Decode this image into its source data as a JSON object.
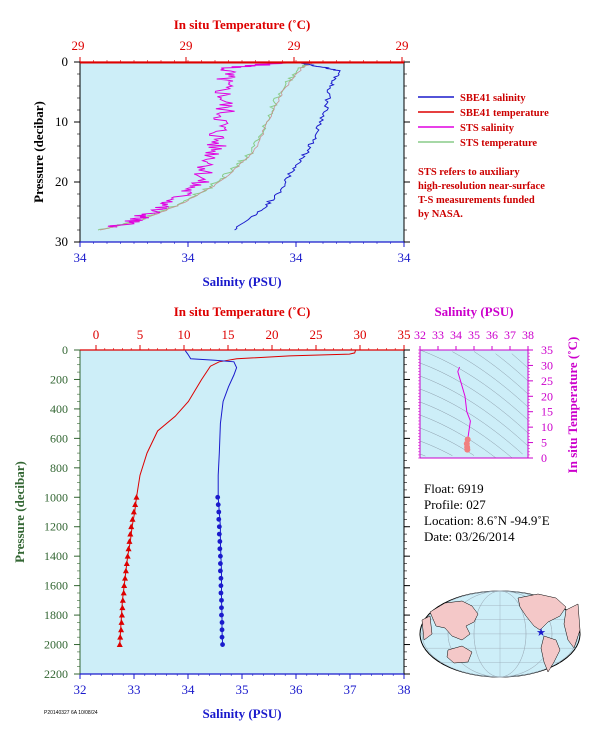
{
  "colors": {
    "plot_bg": "#cdeef8",
    "salinity": "#1a1acc",
    "temperature": "#dd0000",
    "sts_salinity": "#e000e0",
    "sts_temperature": "#88cc88",
    "pressure_axis": "#336633",
    "ts_axis": "#cc00cc",
    "land": "#f4c8c8"
  },
  "top_chart": {
    "top_axis_title": "In situ Temperature (˚C)",
    "top_ticks": [
      "29",
      "29",
      "29",
      "29"
    ],
    "bottom_axis_title": "Salinity (PSU)",
    "bottom_ticks": [
      "34",
      "34",
      "34",
      "34"
    ],
    "y_axis_title": "Pressure (decibar)",
    "y_ticks": [
      "0",
      "10",
      "20",
      "30"
    ],
    "legend": [
      "SBE41 salinity",
      "SBE41 temperature",
      "STS salinity",
      "STS temperature"
    ],
    "note_lines": [
      "STS refers to auxiliary",
      "high-resolution near-surface",
      "T-S measurements funded",
      "by NASA."
    ]
  },
  "main_chart": {
    "top_axis_title": "In situ Temperature (˚C)",
    "top_ticks": [
      "0",
      "5",
      "10",
      "15",
      "20",
      "25",
      "30",
      "35"
    ],
    "bottom_axis_title": "Salinity (PSU)",
    "bottom_ticks": [
      "32",
      "33",
      "34",
      "35",
      "36",
      "37",
      "38"
    ],
    "y_axis_title": "Pressure (decibar)",
    "y_ticks": [
      "0",
      "200",
      "400",
      "600",
      "800",
      "1000",
      "1200",
      "1400",
      "1600",
      "1800",
      "2000",
      "2200"
    ]
  },
  "ts_chart": {
    "top_axis_title": "Salinity (PSU)",
    "top_ticks": [
      "32",
      "33",
      "34",
      "35",
      "36",
      "37",
      "38"
    ],
    "right_axis_title": "In situ Temperature (˚C)",
    "right_ticks": [
      "0",
      "5",
      "10",
      "15",
      "20",
      "25",
      "30",
      "35"
    ]
  },
  "info": {
    "float": "Float:  6919",
    "profile": "Profile:  027",
    "location": "Location:  8.6˚N  -94.9˚E",
    "date": "Date:  03/26/2014"
  },
  "stamp": "P20140327 6A 10/08/24",
  "chart_data": [
    {
      "type": "line",
      "name": "near-surface profile",
      "y_range": [
        0,
        30
      ],
      "sbe41_salinity": [
        [
          0.0,
          0.1
        ],
        [
          0.5,
          0.8
        ],
        [
          0.9,
          1.5
        ],
        [
          0.7,
          4
        ],
        [
          0.6,
          8
        ],
        [
          0.4,
          12
        ],
        [
          0.2,
          15
        ],
        [
          -0.1,
          18
        ],
        [
          -0.4,
          22
        ],
        [
          -0.8,
          25
        ],
        [
          -1.3,
          28
        ]
      ],
      "sbe41_temperature": [
        [
          1.8,
          0.0
        ],
        [
          1.8,
          0.1
        ]
      ],
      "sts_salinity": [
        [
          0.9,
          0.1
        ],
        [
          -0.3,
          1
        ],
        [
          -0.4,
          4
        ],
        [
          -0.35,
          8
        ],
        [
          -0.5,
          12
        ],
        [
          -0.6,
          16
        ],
        [
          -0.9,
          20
        ],
        [
          -1.4,
          23
        ],
        [
          -2.0,
          25.5
        ],
        [
          -2.6,
          27.5
        ]
      ],
      "sts_temperature": [
        [
          1.4,
          0.2
        ],
        [
          1.2,
          1
        ],
        [
          0.8,
          5
        ],
        [
          0.5,
          10
        ],
        [
          0.2,
          15
        ],
        [
          -0.2,
          18
        ],
        [
          -0.7,
          21
        ],
        [
          -1.4,
          24
        ],
        [
          -2.2,
          26.5
        ],
        [
          -3.0,
          28
        ]
      ]
    },
    {
      "type": "line",
      "name": "full profile",
      "y_range": [
        0,
        2200
      ],
      "x_salinity_range": [
        32,
        38
      ],
      "x_temperature_range": [
        0,
        35
      ],
      "salinity": [
        [
          33.95,
          5
        ],
        [
          34.0,
          30
        ],
        [
          34.05,
          60
        ],
        [
          34.5,
          70
        ],
        [
          34.85,
          80
        ],
        [
          34.9,
          120
        ],
        [
          34.85,
          170
        ],
        [
          34.75,
          250
        ],
        [
          34.65,
          350
        ],
        [
          34.6,
          500
        ],
        [
          34.58,
          700
        ],
        [
          34.56,
          850
        ],
        [
          34.56,
          1000
        ],
        [
          34.58,
          1100
        ],
        [
          34.6,
          1200
        ],
        [
          34.6,
          1300
        ],
        [
          34.61,
          1400
        ],
        [
          34.62,
          1500
        ],
        [
          34.62,
          1600
        ],
        [
          34.62,
          1700
        ],
        [
          34.63,
          1800
        ],
        [
          34.63,
          1900
        ],
        [
          34.64,
          2000
        ]
      ],
      "temperature": [
        [
          29.5,
          0
        ],
        [
          29.4,
          20
        ],
        [
          28.8,
          28
        ],
        [
          22.0,
          40
        ],
        [
          16.0,
          60
        ],
        [
          14.0,
          80
        ],
        [
          13.0,
          110
        ],
        [
          12.0,
          200
        ],
        [
          10.5,
          350
        ],
        [
          9.0,
          450
        ],
        [
          7.0,
          550
        ],
        [
          5.8,
          700
        ],
        [
          5.0,
          850
        ],
        [
          4.6,
          1000
        ],
        [
          4.4,
          1100
        ],
        [
          4.1,
          1200
        ],
        [
          3.9,
          1300
        ],
        [
          3.6,
          1400
        ],
        [
          3.4,
          1500
        ],
        [
          3.2,
          1600
        ],
        [
          3.0,
          1700
        ],
        [
          2.9,
          1800
        ],
        [
          2.8,
          1900
        ],
        [
          2.7,
          2000
        ]
      ],
      "deep_salinity_points": [
        [
          34.55,
          1000
        ],
        [
          34.56,
          1050
        ],
        [
          34.57,
          1100
        ],
        [
          34.57,
          1150
        ],
        [
          34.58,
          1200
        ],
        [
          34.58,
          1250
        ],
        [
          34.59,
          1300
        ],
        [
          34.59,
          1350
        ],
        [
          34.6,
          1400
        ],
        [
          34.6,
          1450
        ],
        [
          34.6,
          1500
        ],
        [
          34.61,
          1550
        ],
        [
          34.61,
          1600
        ],
        [
          34.61,
          1650
        ],
        [
          34.62,
          1700
        ],
        [
          34.62,
          1750
        ],
        [
          34.62,
          1800
        ],
        [
          34.63,
          1850
        ],
        [
          34.63,
          1900
        ],
        [
          34.63,
          1950
        ],
        [
          34.64,
          2000
        ]
      ],
      "deep_temperature_points": [
        [
          4.6,
          1000
        ],
        [
          4.45,
          1050
        ],
        [
          4.3,
          1100
        ],
        [
          4.15,
          1150
        ],
        [
          4.0,
          1200
        ],
        [
          3.9,
          1250
        ],
        [
          3.8,
          1300
        ],
        [
          3.7,
          1350
        ],
        [
          3.6,
          1400
        ],
        [
          3.5,
          1450
        ],
        [
          3.4,
          1500
        ],
        [
          3.3,
          1550
        ],
        [
          3.2,
          1600
        ],
        [
          3.15,
          1650
        ],
        [
          3.05,
          1700
        ],
        [
          3.0,
          1750
        ],
        [
          2.95,
          1800
        ],
        [
          2.9,
          1850
        ],
        [
          2.85,
          1900
        ],
        [
          2.75,
          1950
        ],
        [
          2.7,
          2000
        ]
      ]
    },
    {
      "type": "scatter",
      "name": "T-S diagram",
      "x_range": [
        32,
        38
      ],
      "y_range": [
        0,
        35
      ],
      "ts_points": [
        [
          34.2,
          29.5
        ],
        [
          34.1,
          28.0
        ],
        [
          34.3,
          24
        ],
        [
          34.5,
          20
        ],
        [
          34.6,
          15
        ],
        [
          34.8,
          12
        ],
        [
          34.75,
          10
        ],
        [
          34.7,
          8
        ],
        [
          34.65,
          6
        ],
        [
          34.6,
          4.6
        ],
        [
          34.62,
          3.5
        ],
        [
          34.63,
          2.7
        ]
      ]
    }
  ]
}
